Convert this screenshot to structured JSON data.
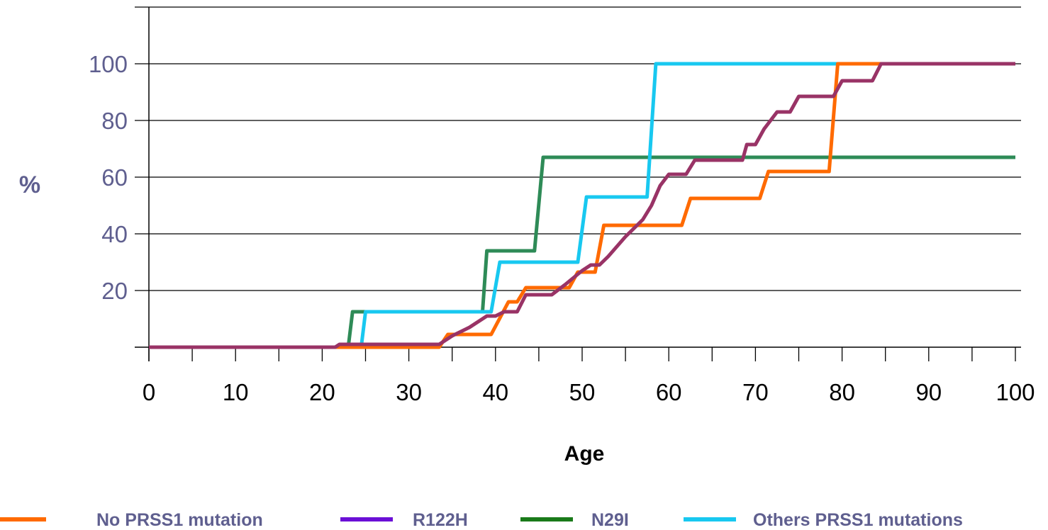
{
  "chart_data": {
    "type": "line",
    "xlabel": "Age",
    "ylabel": "%",
    "xlim": [
      0,
      100
    ],
    "ylim": [
      0,
      120
    ],
    "x_ticks": [
      0,
      10,
      20,
      30,
      40,
      50,
      60,
      70,
      80,
      90,
      100
    ],
    "y_ticks": [
      20,
      40,
      60,
      80,
      100
    ],
    "grid": true,
    "legend_position": "bottom",
    "series": [
      {
        "name": "No PRSS1 mutation",
        "color": "#ff6a00",
        "legend_color": "#ff6a00",
        "x": [
          0,
          33.5,
          34.5,
          39.5,
          41.5,
          42.5,
          43.5,
          48.5,
          49.5,
          51.5,
          52.5,
          61.5,
          62.5,
          70.5,
          71.5,
          78.5,
          79.5,
          100
        ],
        "y": [
          0,
          0,
          4.5,
          4.5,
          16,
          16,
          21,
          21,
          26.5,
          26.5,
          43,
          43,
          52.5,
          52.5,
          62,
          62,
          100,
          100
        ]
      },
      {
        "name": "R122H",
        "color": "#993366",
        "legend_color": "#6b0fd6",
        "x": [
          0,
          21.5,
          22,
          33.5,
          35,
          37,
          39,
          40,
          41,
          42.5,
          43.5,
          46.5,
          48,
          50,
          51,
          52,
          53,
          55,
          57,
          58,
          59,
          60,
          61,
          62,
          63,
          68.5,
          69,
          70,
          71,
          72.5,
          74,
          75,
          77,
          78.5,
          79,
          80,
          81.5,
          83.5,
          84.5,
          100
        ],
        "y": [
          0,
          0,
          1,
          1,
          4,
          7,
          11,
          11,
          12.5,
          12.5,
          18.5,
          18.5,
          22,
          27,
          29,
          29,
          32,
          39,
          45,
          50,
          57,
          61,
          61,
          61,
          66,
          66,
          71.5,
          71.5,
          77,
          83,
          83,
          88.5,
          88.5,
          88.5,
          88.5,
          94,
          94,
          94,
          100,
          100
        ]
      },
      {
        "name": "N29I",
        "color": "#2e8b57",
        "legend_color": "#1a7a1a",
        "x": [
          0,
          23,
          23.5,
          38.5,
          39,
          44.5,
          45.5,
          100
        ],
        "y": [
          0,
          0,
          12.5,
          12.5,
          34,
          34,
          67,
          67
        ]
      },
      {
        "name": "Others PRSS1 mutations",
        "color": "#18c8f0",
        "legend_color": "#18c8f0",
        "x": [
          0,
          24.5,
          25,
          39.5,
          40.5,
          49.5,
          50.5,
          57.5,
          58.5,
          100
        ],
        "y": [
          0,
          0,
          12.5,
          12.5,
          30,
          30,
          53,
          53,
          100,
          100
        ]
      }
    ]
  }
}
